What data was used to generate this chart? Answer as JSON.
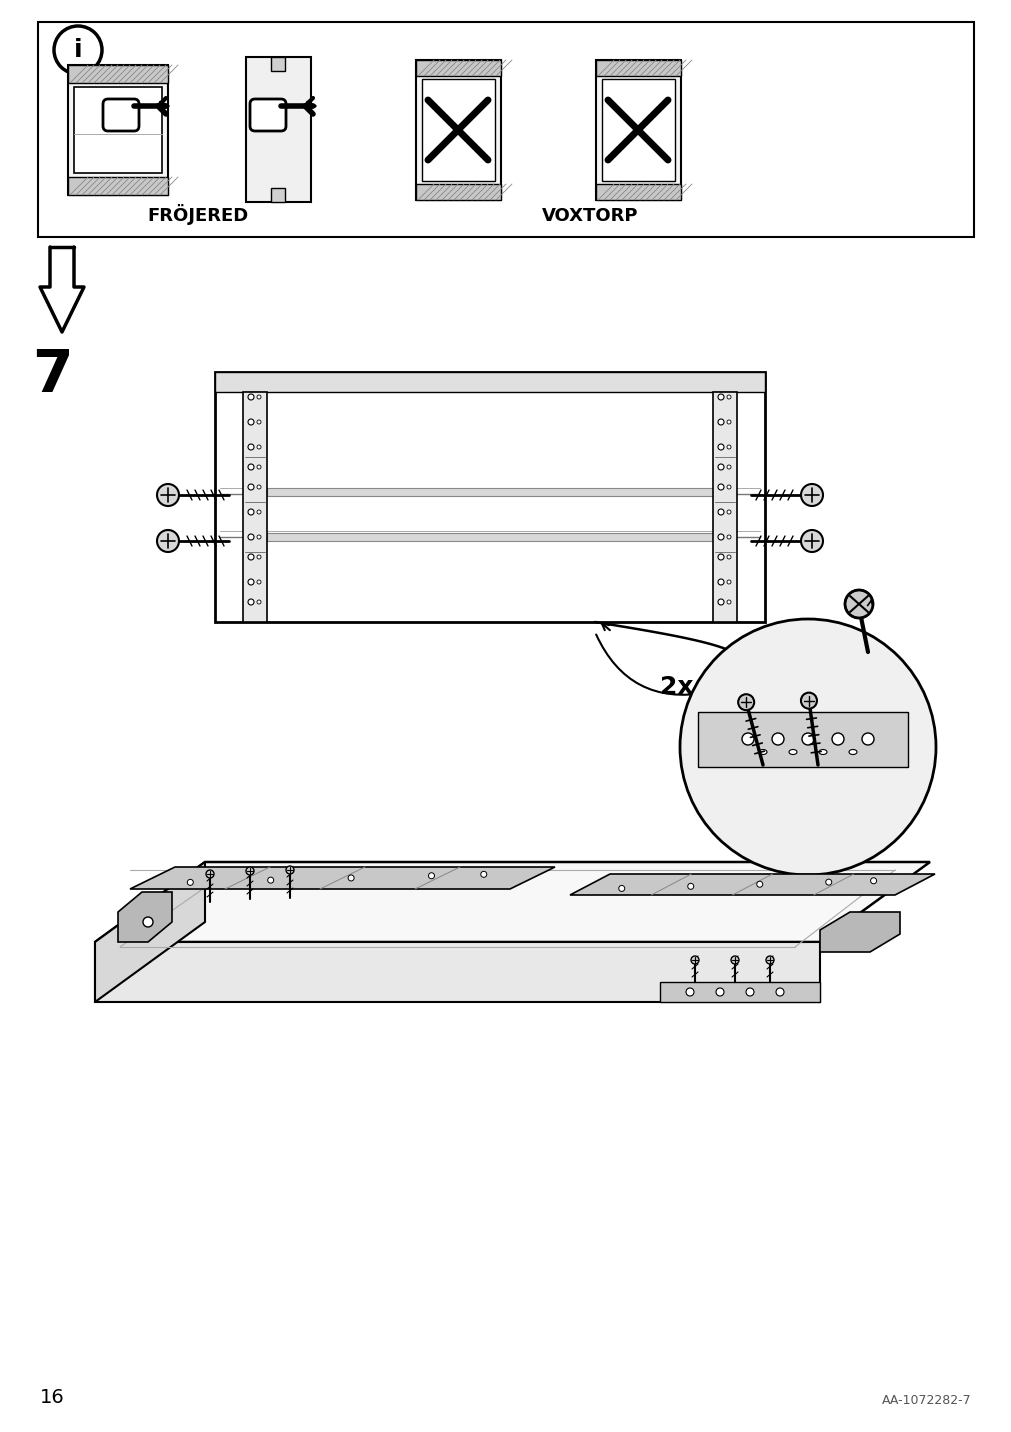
{
  "page_number": "16",
  "doc_id": "AA-1072282-7",
  "step_number": "7",
  "labels": {
    "frojered": "FRÖJERED",
    "voxtorp": "VOXTORP",
    "count": "2x"
  },
  "colors": {
    "background": "#ffffff",
    "line": "#000000",
    "light_line": "#555555",
    "fill_light": "#f0f0f0",
    "fill_medium": "#d0d0d0",
    "fill_dark": "#888888",
    "fill_very_light": "#f8f8f8"
  }
}
